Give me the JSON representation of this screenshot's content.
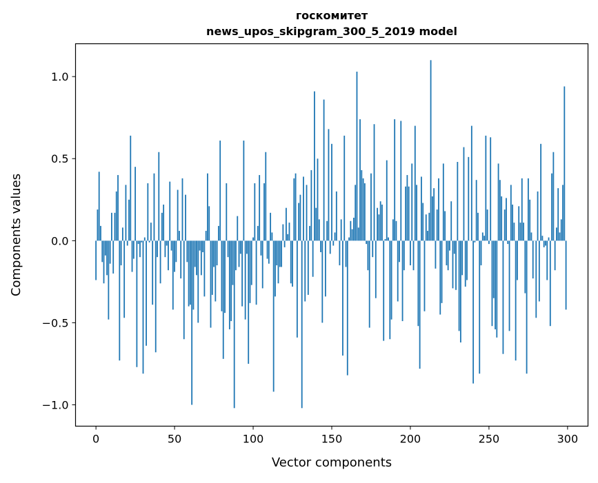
{
  "chart_data": {
    "type": "bar",
    "title": "госкомитет",
    "subtitle": "news_upos_skipgram_300_5_2019 model",
    "xlabel": "Vector components",
    "ylabel": "Components values",
    "xlim": [
      -13,
      313
    ],
    "ylim": [
      -1.13,
      1.2
    ],
    "xticks": [
      0,
      50,
      100,
      150,
      200,
      250,
      300
    ],
    "xtick_labels": [
      "0",
      "50",
      "100",
      "150",
      "200",
      "250",
      "300"
    ],
    "yticks": [
      -1.0,
      -0.5,
      0.0,
      0.5,
      1.0
    ],
    "ytick_labels": [
      "−1.0",
      "−0.5",
      "0.0",
      "0.5",
      "1.0"
    ],
    "grid": false,
    "bar_color": "#1f77b4",
    "values": [
      -0.24,
      0.19,
      0.42,
      0.09,
      -0.13,
      -0.26,
      -0.09,
      -0.21,
      -0.48,
      -0.14,
      0.17,
      -0.2,
      0.17,
      0.3,
      0.4,
      -0.73,
      -0.15,
      0.08,
      -0.47,
      0.34,
      -0.03,
      0.25,
      0.64,
      -0.19,
      -0.11,
      0.45,
      -0.77,
      -0.02,
      -0.1,
      -0.01,
      -0.81,
      0.02,
      -0.64,
      0.35,
      -0.01,
      0.11,
      -0.39,
      0.41,
      -0.68,
      -0.1,
      0.54,
      -0.26,
      0.17,
      0.22,
      -0.1,
      -0.03,
      -0.18,
      0.36,
      -0.06,
      -0.42,
      -0.19,
      -0.13,
      0.31,
      0.06,
      -0.23,
      0.38,
      -0.6,
      0.28,
      -0.13,
      -0.4,
      -0.39,
      -1.0,
      -0.42,
      -0.16,
      -0.21,
      -0.5,
      -0.06,
      -0.21,
      -0.07,
      -0.34,
      0.06,
      0.41,
      0.21,
      -0.53,
      -0.33,
      -0.16,
      -0.37,
      -0.15,
      0.09,
      0.61,
      -0.43,
      -0.72,
      -0.44,
      0.35,
      -0.1,
      -0.54,
      -0.49,
      -0.27,
      -1.02,
      -0.18,
      0.15,
      -0.16,
      -0.08,
      -0.4,
      0.61,
      -0.48,
      -0.08,
      -0.75,
      -0.38,
      -0.27,
      0.02,
      0.35,
      -0.39,
      0.09,
      0.4,
      -0.09,
      -0.29,
      0.35,
      0.54,
      -0.11,
      -0.14,
      0.17,
      0.05,
      -0.92,
      -0.34,
      -0.15,
      -0.26,
      -0.16,
      -0.16,
      0.1,
      -0.04,
      0.2,
      0.04,
      0.11,
      -0.26,
      -0.28,
      0.38,
      0.41,
      -0.59,
      0.23,
      0.28,
      -1.02,
      0.39,
      -0.37,
      0.34,
      -0.33,
      0.09,
      0.43,
      -0.22,
      0.91,
      0.2,
      0.5,
      0.13,
      -0.07,
      -0.5,
      0.86,
      -0.34,
      0.12,
      0.68,
      -0.08,
      0.59,
      -0.03,
      0.05,
      0.3,
      0.0,
      -0.15,
      0.13,
      -0.7,
      0.64,
      -0.16,
      -0.82,
      0.02,
      0.12,
      0.07,
      0.14,
      0.34,
      1.03,
      0.08,
      0.74,
      0.43,
      0.38,
      0.35,
      -0.02,
      -0.18,
      -0.53,
      0.41,
      -0.1,
      0.71,
      -0.35,
      0.2,
      0.16,
      0.24,
      0.22,
      -0.61,
      0.01,
      0.49,
      0.02,
      -0.6,
      -0.48,
      0.13,
      0.74,
      0.12,
      -0.37,
      -0.13,
      0.73,
      -0.49,
      -0.18,
      0.33,
      0.4,
      0.33,
      -0.15,
      0.47,
      -0.18,
      0.7,
      0.34,
      -0.52,
      -0.78,
      0.39,
      0.23,
      -0.43,
      0.16,
      0.06,
      0.17,
      1.1,
      0.27,
      0.32,
      -0.17,
      0.19,
      0.38,
      -0.45,
      -0.38,
      0.47,
      0.18,
      -0.15,
      -0.18,
      -0.06,
      0.24,
      -0.29,
      -0.08,
      -0.3,
      0.48,
      -0.55,
      -0.62,
      -0.21,
      0.57,
      -0.28,
      -0.24,
      0.51,
      0.0,
      0.7,
      -0.87,
      -0.01,
      0.37,
      0.17,
      -0.81,
      -0.15,
      0.05,
      0.03,
      0.64,
      0.19,
      -0.02,
      0.63,
      -0.52,
      -0.35,
      -0.54,
      -0.59,
      0.47,
      0.37,
      0.27,
      -0.69,
      0.19,
      0.26,
      -0.02,
      -0.55,
      0.34,
      0.22,
      0.11,
      -0.73,
      -0.24,
      0.21,
      0.11,
      0.38,
      0.11,
      -0.32,
      -0.81,
      0.38,
      0.25,
      0.05,
      -0.23,
      0.0,
      -0.47,
      0.3,
      -0.37,
      0.59,
      0.03,
      -0.04,
      -0.03,
      -0.24,
      0.02,
      -0.52,
      0.41,
      0.54,
      -0.18,
      0.08,
      0.32,
      0.05,
      0.13,
      0.34,
      0.94,
      -0.42
    ]
  }
}
